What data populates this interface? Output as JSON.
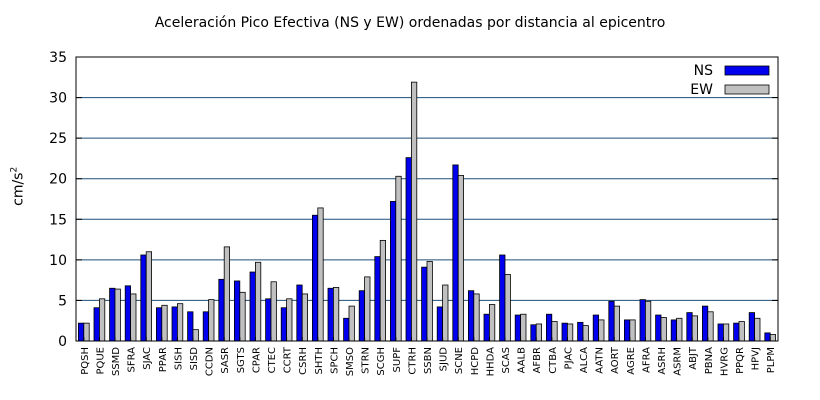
{
  "chart_data": {
    "type": "bar",
    "title": "Aceleración Pico Efectiva (NS y EW) ordenadas por distancia al epicentro",
    "ylabel": "cm/s",
    "ylabel_superscript": "2",
    "xlabel": "",
    "ylim": [
      0,
      35
    ],
    "yticks": [
      0,
      5,
      10,
      15,
      20,
      25,
      30,
      35
    ],
    "grid": true,
    "legend_position": "top-right",
    "categories": [
      "PQSH",
      "PQUE",
      "SSMD",
      "SFRA",
      "SJAC",
      "PPAR",
      "SISH",
      "SISD",
      "CCDN",
      "SASR",
      "SGTS",
      "CPAR",
      "CTEC",
      "CCRT",
      "CSRH",
      "SHTH",
      "SPCH",
      "SMSO",
      "STRN",
      "SCGH",
      "SUPF",
      "CTRH",
      "SSBN",
      "SJUD",
      "SCNE",
      "HCPD",
      "HHDA",
      "SCAS",
      "AALB",
      "AFBR",
      "CTBA",
      "PJAC",
      "ALCA",
      "AATN",
      "AORT",
      "AGRE",
      "AFRA",
      "ASRH",
      "ASRM",
      "ABJT",
      "PBNA",
      "HVRG",
      "PPQR",
      "HPVJ",
      "PLPM"
    ],
    "series": [
      {
        "name": "NS",
        "color": "#0000ee",
        "values": [
          2.2,
          4.1,
          6.5,
          6.8,
          10.6,
          4.1,
          4.2,
          3.6,
          3.6,
          7.6,
          7.4,
          8.5,
          5.2,
          4.1,
          6.9,
          15.5,
          6.5,
          2.8,
          6.2,
          10.4,
          17.2,
          22.6,
          9.1,
          4.2,
          21.7,
          6.2,
          3.3,
          10.6,
          3.2,
          2.0,
          3.3,
          2.2,
          2.3,
          3.2,
          4.9,
          2.6,
          5.1,
          3.2,
          2.6,
          3.5,
          4.3,
          2.1,
          2.2,
          3.5,
          1.0
        ]
      },
      {
        "name": "EW",
        "color": "#c0c0c0",
        "values": [
          2.2,
          5.2,
          6.4,
          5.8,
          11.0,
          4.4,
          4.6,
          1.4,
          5.1,
          11.6,
          6.0,
          9.7,
          7.3,
          5.2,
          5.8,
          16.4,
          6.6,
          4.3,
          7.9,
          12.4,
          20.3,
          31.9,
          9.8,
          6.9,
          20.4,
          5.8,
          4.5,
          8.2,
          3.3,
          2.1,
          2.4,
          2.1,
          1.9,
          2.6,
          4.3,
          2.6,
          4.9,
          2.9,
          2.8,
          3.1,
          3.6,
          2.1,
          2.4,
          2.8,
          0.8
        ]
      }
    ]
  }
}
